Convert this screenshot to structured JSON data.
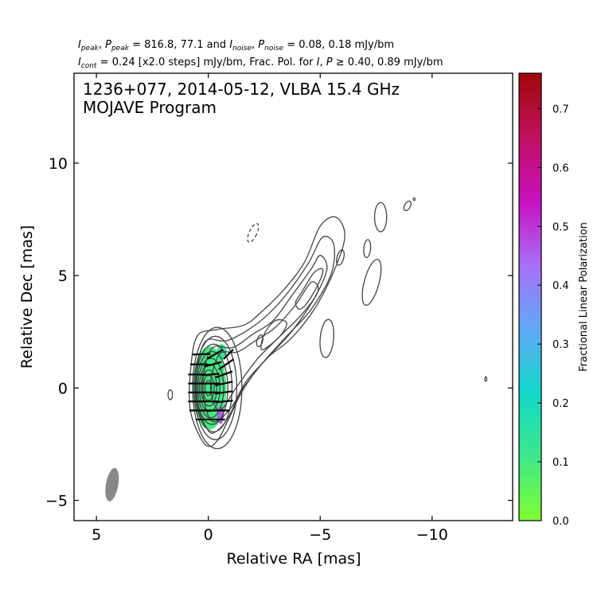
{
  "header": {
    "line1": {
      "ipeak_var": "I",
      "ipeak_sub": "peak",
      "ppeak_var": "P",
      "ppeak_sub": "peak",
      "eq1": "= 816.8, 77.1 and",
      "inoise_var": "I",
      "inoise_sub": "noise",
      "pnoise_var": "P",
      "pnoise_sub": "noise",
      "eq2": "= 0.08, 0.18 mJy/bm"
    },
    "line2": {
      "icont_var": "I",
      "icont_sub": "cont",
      "text1": "= 0.24 [x2.0 steps] mJy/bm, Frac. Pol. for",
      "i_var": "I",
      "p_var": "P",
      "text2": "≥ 0.40, 0.89 mJy/bm"
    }
  },
  "chart_data": {
    "type": "contour",
    "title": "1236+077, 2014-05-12, VLBA 15.4 GHz",
    "subtitle": "MOJAVE Program",
    "xlabel": "Relative RA [mas]",
    "ylabel": "Relative Dec [mas]",
    "xlim": [
      6.0,
      -13.6
    ],
    "ylim": [
      -5.9,
      14.0
    ],
    "xticks": [
      {
        "value": 5,
        "label": "5"
      },
      {
        "value": 0,
        "label": "0"
      },
      {
        "value": -5,
        "label": "−5"
      },
      {
        "value": -10,
        "label": "−10"
      }
    ],
    "yticks": [
      {
        "value": 10,
        "label": "10"
      },
      {
        "value": 5,
        "label": "5"
      },
      {
        "value": 0,
        "label": "0"
      },
      {
        "value": -5,
        "label": "−5"
      }
    ],
    "colorbar": {
      "label": "Fractional Linear Polarization",
      "range": [
        0.0,
        0.76
      ],
      "ticks": [
        {
          "value": 0.0,
          "label": "0.0"
        },
        {
          "value": 0.1,
          "label": "0.1"
        },
        {
          "value": 0.2,
          "label": "0.2"
        },
        {
          "value": 0.3,
          "label": "0.3"
        },
        {
          "value": 0.4,
          "label": "0.4"
        },
        {
          "value": 0.5,
          "label": "0.5"
        },
        {
          "value": 0.6,
          "label": "0.6"
        },
        {
          "value": 0.7,
          "label": "0.7"
        }
      ],
      "colors": [
        "#80ff30",
        "#3ee88a",
        "#10d8c8",
        "#60a8f8",
        "#a870f8",
        "#c810c0",
        "#c01060",
        "#a00808"
      ]
    },
    "contour_color": "#444444",
    "beam": {
      "ra": 4.3,
      "dec": -4.3,
      "major": 1.5,
      "minor": 0.55,
      "pa_deg": 10,
      "color": "#888888"
    },
    "core": {
      "ra": 0.0,
      "dec": 0.0
    },
    "core_contours": [
      {
        "ra": -0.4,
        "dec": 0.0,
        "rx": 1.1,
        "ry": 2.7
      },
      {
        "ra": -0.32,
        "dec": 0.0,
        "rx": 0.95,
        "ry": 2.3
      },
      {
        "ra": -0.24,
        "dec": 0.0,
        "rx": 0.82,
        "ry": 1.95
      },
      {
        "ra": -0.17,
        "dec": 0.0,
        "rx": 0.7,
        "ry": 1.62
      },
      {
        "ra": -0.11,
        "dec": 0.0,
        "rx": 0.58,
        "ry": 1.32
      },
      {
        "ra": -0.06,
        "dec": 0.0,
        "rx": 0.46,
        "ry": 1.05
      },
      {
        "ra": -0.03,
        "dec": 0.0,
        "rx": 0.35,
        "ry": 0.8
      },
      {
        "ra": -0.01,
        "dec": 0.0,
        "rx": 0.25,
        "ry": 0.56
      },
      {
        "ra": 0.0,
        "dec": 0.0,
        "rx": 0.15,
        "ry": 0.34
      }
    ],
    "jet_contours": [
      [
        [
          0.3,
          -2.3
        ],
        [
          0.8,
          -1.0
        ],
        [
          0.8,
          0.7
        ],
        [
          0.5,
          2.3
        ],
        [
          -0.4,
          2.6
        ],
        [
          -1.6,
          2.8
        ],
        [
          -2.5,
          3.5
        ],
        [
          -3.4,
          4.4
        ],
        [
          -4.3,
          5.6
        ],
        [
          -5.0,
          7.2
        ],
        [
          -5.7,
          7.6
        ],
        [
          -6.1,
          6.8
        ],
        [
          -5.7,
          5.4
        ],
        [
          -4.8,
          3.6
        ],
        [
          -3.7,
          2.2
        ],
        [
          -2.6,
          1.3
        ],
        [
          -1.6,
          0.0
        ],
        [
          -0.9,
          -1.4
        ],
        [
          -0.5,
          -2.2
        ],
        [
          -0.1,
          -2.6
        ]
      ],
      [
        [
          0.0,
          -1.9
        ],
        [
          0.5,
          -0.7
        ],
        [
          0.5,
          0.9
        ],
        [
          0.1,
          2.1
        ],
        [
          -0.8,
          2.1
        ],
        [
          -1.8,
          2.6
        ],
        [
          -2.7,
          3.3
        ],
        [
          -3.6,
          4.3
        ],
        [
          -4.5,
          5.6
        ],
        [
          -5.1,
          6.7
        ],
        [
          -5.6,
          6.4
        ],
        [
          -5.5,
          5.1
        ],
        [
          -4.6,
          3.5
        ],
        [
          -3.5,
          2.3
        ],
        [
          -2.5,
          1.2
        ],
        [
          -1.5,
          -0.1
        ],
        [
          -0.9,
          -1.3
        ],
        [
          -0.4,
          -1.9
        ]
      ],
      [
        [
          -0.2,
          -1.5
        ],
        [
          0.2,
          -0.5
        ],
        [
          0.2,
          0.7
        ],
        [
          -0.2,
          1.8
        ],
        [
          -1.1,
          1.8
        ],
        [
          -2.0,
          2.4
        ],
        [
          -2.9,
          3.0
        ],
        [
          -3.8,
          4.2
        ],
        [
          -4.6,
          5.3
        ],
        [
          -5.0,
          5.9
        ],
        [
          -5.3,
          5.3
        ],
        [
          -4.8,
          4.1
        ],
        [
          -3.8,
          2.6
        ],
        [
          -2.7,
          1.4
        ],
        [
          -1.7,
          0.3
        ],
        [
          -1.0,
          -0.9
        ]
      ],
      [
        [
          -0.5,
          -1.0
        ],
        [
          -0.1,
          0.1
        ],
        [
          -0.5,
          1.5
        ],
        [
          -1.3,
          1.6
        ],
        [
          -2.1,
          2.1
        ],
        [
          -3.0,
          2.7
        ],
        [
          -3.9,
          3.7
        ],
        [
          -4.6,
          4.7
        ],
        [
          -4.9,
          4.3
        ],
        [
          -4.2,
          3.3
        ],
        [
          -3.1,
          2.2
        ],
        [
          -2.2,
          1.3
        ],
        [
          -1.3,
          0.1
        ]
      ],
      [
        [
          -2.4,
          1.7
        ],
        [
          -3.2,
          2.3
        ],
        [
          -3.5,
          2.9
        ],
        [
          -3.0,
          3.0
        ],
        [
          -2.5,
          2.4
        ]
      ],
      [
        [
          -4.1,
          3.5
        ],
        [
          -4.5,
          3.9
        ],
        [
          -5.0,
          4.8
        ],
        [
          -5.1,
          5.3
        ],
        [
          -4.7,
          5.1
        ],
        [
          -4.2,
          4.3
        ],
        [
          -3.9,
          3.8
        ]
      ]
    ],
    "isolated_contours": [
      {
        "ra": 1.7,
        "dec": -0.3,
        "rx": 0.1,
        "ry": 0.22,
        "rot": 0,
        "dashed": false
      },
      {
        "ra": -2.0,
        "dec": 6.9,
        "rx": 0.17,
        "ry": 0.45,
        "rot": 25,
        "dashed": true
      },
      {
        "ra": -2.3,
        "dec": 2.1,
        "rx": 0.13,
        "ry": 0.27,
        "rot": 15,
        "dashed": false
      },
      {
        "ra": -5.3,
        "dec": 2.2,
        "rx": 0.3,
        "ry": 0.85,
        "rot": 5,
        "dashed": false
      },
      {
        "ra": -5.9,
        "dec": 5.8,
        "rx": 0.15,
        "ry": 0.35,
        "rot": 15,
        "dashed": false
      },
      {
        "ra": -7.1,
        "dec": 6.2,
        "rx": 0.15,
        "ry": 0.4,
        "rot": 5,
        "dashed": false
      },
      {
        "ra": -7.3,
        "dec": 4.7,
        "rx": 0.33,
        "ry": 1.05,
        "rot": 15,
        "dashed": false
      },
      {
        "ra": -7.7,
        "dec": 7.6,
        "rx": 0.27,
        "ry": 0.65,
        "rot": 0,
        "dashed": false
      },
      {
        "ra": -8.9,
        "dec": 8.1,
        "rx": 0.13,
        "ry": 0.23,
        "rot": 30,
        "dashed": false
      },
      {
        "ra": -9.2,
        "dec": 8.4,
        "rx": 0.04,
        "ry": 0.06,
        "rot": 0,
        "dashed": false
      },
      {
        "ra": -12.4,
        "dec": 0.4,
        "rx": 0.04,
        "ry": 0.1,
        "rot": 0,
        "dashed": false
      }
    ],
    "polarization": {
      "main": {
        "ra": -0.05,
        "dec": 0.0,
        "rx": 0.75,
        "ry": 1.85,
        "frac": 0.1
      },
      "edge_patches": [
        {
          "ra": -0.6,
          "dec": 1.6,
          "rx": 0.22,
          "ry": 0.35,
          "frac": 0.12
        },
        {
          "ra": -0.55,
          "dec": -1.2,
          "rx": 0.15,
          "ry": 0.4,
          "frac": 0.45
        }
      ]
    },
    "evpa_vectors": [
      {
        "ra": 0.3,
        "dec": 1.5,
        "angle_deg": 2,
        "length": 0.8
      },
      {
        "ra": -0.3,
        "dec": 1.5,
        "angle_deg": 30,
        "length": 0.8
      },
      {
        "ra": -0.9,
        "dec": 1.5,
        "angle_deg": 45,
        "length": 0.6
      },
      {
        "ra": 0.4,
        "dec": 1.05,
        "angle_deg": 0,
        "length": 0.8
      },
      {
        "ra": -0.2,
        "dec": 1.05,
        "angle_deg": 15,
        "length": 0.8
      },
      {
        "ra": -0.8,
        "dec": 1.05,
        "angle_deg": 35,
        "length": 0.8
      },
      {
        "ra": 0.5,
        "dec": 0.6,
        "angle_deg": 0,
        "length": 0.8
      },
      {
        "ra": -0.1,
        "dec": 0.6,
        "angle_deg": 5,
        "length": 0.8
      },
      {
        "ra": -0.7,
        "dec": 0.6,
        "angle_deg": 20,
        "length": 0.8
      },
      {
        "ra": 0.5,
        "dec": 0.2,
        "angle_deg": 0,
        "length": 0.8
      },
      {
        "ra": -0.1,
        "dec": 0.2,
        "angle_deg": 0,
        "length": 0.8
      },
      {
        "ra": -0.7,
        "dec": 0.2,
        "angle_deg": 12,
        "length": 0.8
      },
      {
        "ra": 0.5,
        "dec": -0.2,
        "angle_deg": 0,
        "length": 0.8
      },
      {
        "ra": -0.1,
        "dec": -0.2,
        "angle_deg": 0,
        "length": 0.8
      },
      {
        "ra": -0.7,
        "dec": -0.2,
        "angle_deg": 8,
        "length": 0.8
      },
      {
        "ra": 0.5,
        "dec": -0.6,
        "angle_deg": 0,
        "length": 0.8
      },
      {
        "ra": -0.1,
        "dec": -0.6,
        "angle_deg": 0,
        "length": 0.8
      },
      {
        "ra": -0.7,
        "dec": -0.6,
        "angle_deg": 5,
        "length": 0.8
      },
      {
        "ra": 0.45,
        "dec": -1.0,
        "angle_deg": 0,
        "length": 0.8
      },
      {
        "ra": -0.15,
        "dec": -1.0,
        "angle_deg": 0,
        "length": 0.8
      },
      {
        "ra": -0.6,
        "dec": -1.0,
        "angle_deg": 0,
        "length": 0.7
      },
      {
        "ra": 0.2,
        "dec": -1.4,
        "angle_deg": 0,
        "length": 0.7
      },
      {
        "ra": -0.4,
        "dec": -1.4,
        "angle_deg": 0,
        "length": 0.7
      }
    ]
  }
}
